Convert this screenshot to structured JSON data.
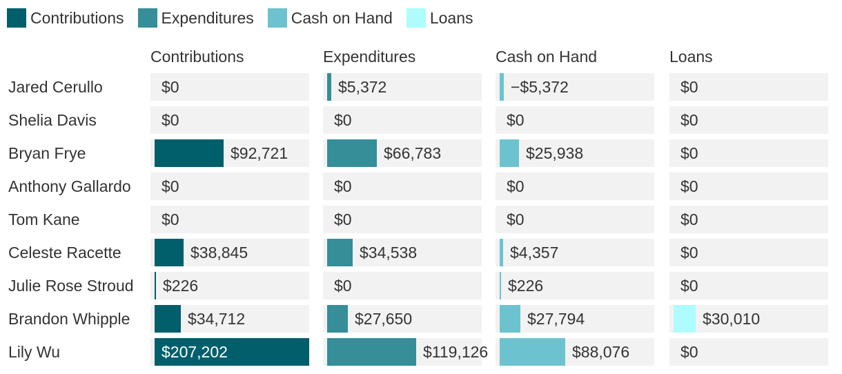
{
  "legend": [
    {
      "label": "Contributions",
      "color": "#005f6b"
    },
    {
      "label": "Expenditures",
      "color": "#358e98"
    },
    {
      "label": "Cash on Hand",
      "color": "#6cc3cf"
    },
    {
      "label": "Loans",
      "color": "#aefcfe"
    }
  ],
  "chart_data": {
    "type": "bar",
    "categories": [
      "Jared Cerullo",
      "Shelia Davis",
      "Bryan Frye",
      "Anthony Gallardo",
      "Tom Kane",
      "Celeste Racette",
      "Julie Rose Stroud",
      "Brandon Whipple",
      "Lily Wu"
    ],
    "series": [
      {
        "name": "Contributions",
        "values": [
          0,
          0,
          92721,
          0,
          0,
          38845,
          226,
          34712,
          207202
        ],
        "labels": [
          "$0",
          "$0",
          "$92,721",
          "$0",
          "$0",
          "$38,845",
          "$226",
          "$34,712",
          "$207,202"
        ]
      },
      {
        "name": "Expenditures",
        "values": [
          5372,
          0,
          66783,
          0,
          0,
          34538,
          0,
          27650,
          119126
        ],
        "labels": [
          "$5,372",
          "$0",
          "$66,783",
          "$0",
          "$0",
          "$34,538",
          "$0",
          "$27,650",
          "$119,126"
        ]
      },
      {
        "name": "Cash on Hand",
        "values": [
          -5372,
          0,
          25938,
          0,
          0,
          4357,
          226,
          27794,
          88076
        ],
        "labels": [
          "−$5,372",
          "$0",
          "$25,938",
          "$0",
          "$0",
          "$4,357",
          "$226",
          "$27,794",
          "$88,076"
        ]
      },
      {
        "name": "Loans",
        "values": [
          0,
          0,
          0,
          0,
          0,
          0,
          0,
          30010,
          0
        ],
        "labels": [
          "$0",
          "$0",
          "$0",
          "$0",
          "$0",
          "$0",
          "$0",
          "$30,010",
          "$0"
        ]
      }
    ],
    "max_value": 207202,
    "legend_position": "top-left"
  }
}
